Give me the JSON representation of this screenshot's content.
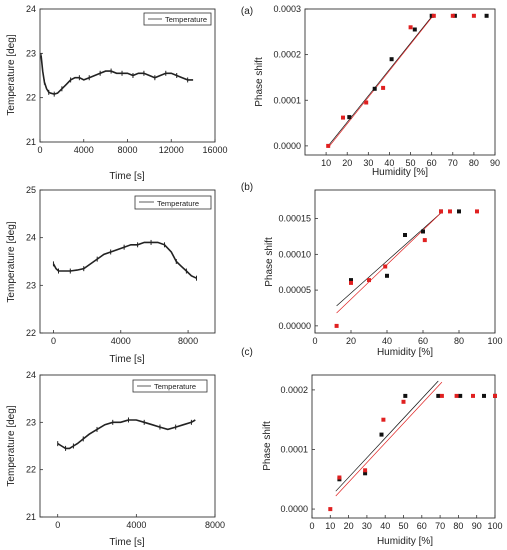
{
  "panel_labels": [
    "(a)",
    "(b)",
    "(c)"
  ],
  "chart_data": [
    {
      "id": "temp-a",
      "type": "line",
      "xlabel": "Time [s]",
      "ylabel": "Temperature [deg]",
      "xlim": [
        0,
        16000
      ],
      "ylim": [
        21,
        24
      ],
      "xticks": [
        0,
        4000,
        8000,
        12000,
        16000
      ],
      "yticks": [
        21,
        22,
        23,
        24
      ],
      "legend": "top-right",
      "series": [
        {
          "name": "Temperature",
          "color": "#222222",
          "x": [
            100,
            250,
            400,
            600,
            800,
            1000,
            1300,
            1600,
            2000,
            2400,
            2800,
            3200,
            3600,
            4000,
            4500,
            5000,
            5500,
            6000,
            6500,
            7000,
            7500,
            8000,
            8500,
            9000,
            9500,
            10000,
            10500,
            11000,
            11500,
            12000,
            12500,
            13000,
            13500,
            14000
          ],
          "y": [
            22.95,
            22.6,
            22.35,
            22.2,
            22.12,
            22.1,
            22.08,
            22.1,
            22.2,
            22.3,
            22.4,
            22.45,
            22.45,
            22.4,
            22.45,
            22.5,
            22.55,
            22.6,
            22.6,
            22.55,
            22.55,
            22.55,
            22.5,
            22.55,
            22.55,
            22.5,
            22.45,
            22.5,
            22.55,
            22.55,
            22.5,
            22.45,
            22.4,
            22.4
          ]
        }
      ]
    },
    {
      "id": "phase-a",
      "type": "scatter",
      "xlabel": "Humidity [%]",
      "ylabel": "Phase shift",
      "xlim": [
        0,
        90
      ],
      "ylim": [
        -2e-05,
        0.0003
      ],
      "xticks": [
        10,
        20,
        30,
        40,
        50,
        60,
        70,
        80,
        90
      ],
      "yticks": [
        0.0,
        0.0001,
        0.0002,
        0.0003
      ],
      "ytick_labels": [
        "0.0000",
        "0.0001",
        "0.0002",
        "0.0003"
      ],
      "series": [
        {
          "color": "#111111",
          "x": [
            21,
            33,
            41,
            52,
            60,
            71,
            86
          ],
          "y": [
            6.3e-05,
            0.000125,
            0.00019,
            0.000255,
            0.000285,
            0.000285,
            0.000285
          ]
        },
        {
          "color": "#e02020",
          "x": [
            11,
            18,
            29,
            37,
            50,
            61,
            70,
            80
          ],
          "y": [
            0.0,
            6.2e-05,
            9.5e-05,
            0.000127,
            0.00026,
            0.000285,
            0.000285,
            0.000285
          ]
        }
      ],
      "fit_lines": [
        {
          "color": "#111111",
          "x": [
            11,
            60
          ],
          "y": [
            0.0,
            0.000283
          ]
        },
        {
          "color": "#e02020",
          "x": [
            11,
            61
          ],
          "y": [
            -4e-06,
            0.000287
          ]
        }
      ]
    },
    {
      "id": "temp-b",
      "type": "line",
      "xlabel": "Time [s]",
      "ylabel": "Temperature [deg]",
      "xlim": [
        -800,
        9600
      ],
      "ylim": [
        22,
        25
      ],
      "xticks": [
        0,
        4000,
        8000
      ],
      "yticks": [
        22,
        23,
        24,
        25
      ],
      "legend": "top-right",
      "series": [
        {
          "name": "Temperature",
          "color": "#222222",
          "x": [
            0,
            150,
            300,
            600,
            1000,
            1400,
            1800,
            2200,
            2600,
            3000,
            3400,
            3800,
            4200,
            4600,
            5000,
            5400,
            5800,
            6200,
            6600,
            7000,
            7300,
            7600,
            7900,
            8200,
            8500
          ],
          "y": [
            23.45,
            23.35,
            23.3,
            23.3,
            23.3,
            23.32,
            23.35,
            23.45,
            23.55,
            23.65,
            23.7,
            23.75,
            23.8,
            23.85,
            23.85,
            23.9,
            23.9,
            23.9,
            23.85,
            23.7,
            23.5,
            23.4,
            23.3,
            23.2,
            23.15
          ]
        }
      ]
    },
    {
      "id": "phase-b",
      "type": "scatter",
      "xlabel": "Humidity [%]",
      "ylabel": "Phase shift",
      "xlim": [
        0,
        100
      ],
      "ylim": [
        -1e-05,
        0.00019
      ],
      "xticks": [
        0,
        20,
        40,
        60,
        80,
        100
      ],
      "yticks": [
        0.0,
        5e-05,
        0.0001,
        0.00015
      ],
      "ytick_labels": [
        "0.00000",
        "0.00005",
        "0.00010",
        "0.00015"
      ],
      "series": [
        {
          "color": "#111111",
          "x": [
            20,
            40,
            50,
            60,
            70,
            80
          ],
          "y": [
            6.4e-05,
            7e-05,
            0.000127,
            0.000132,
            0.00016,
            0.00016
          ]
        },
        {
          "color": "#e02020",
          "x": [
            12,
            20,
            30,
            39,
            61,
            70,
            75,
            90
          ],
          "y": [
            0.0,
            6e-05,
            6.4e-05,
            8.3e-05,
            0.00012,
            0.00016,
            0.00016,
            0.00016
          ]
        }
      ],
      "fit_lines": [
        {
          "color": "#111111",
          "x": [
            12,
            70
          ],
          "y": [
            2.8e-05,
            0.000158
          ]
        },
        {
          "color": "#e02020",
          "x": [
            12,
            70
          ],
          "y": [
            1.8e-05,
            0.000158
          ]
        }
      ]
    },
    {
      "id": "temp-c",
      "type": "line",
      "xlabel": "Time [s]",
      "ylabel": "Temperature [deg]",
      "xlim": [
        -900,
        8000
      ],
      "ylim": [
        21,
        24
      ],
      "xticks": [
        0,
        4000,
        8000
      ],
      "yticks": [
        21,
        22,
        23,
        24
      ],
      "legend": "top-right",
      "series": [
        {
          "name": "Temperature",
          "color": "#222222",
          "x": [
            0,
            200,
            400,
            600,
            800,
            1000,
            1300,
            1600,
            2000,
            2400,
            2800,
            3200,
            3600,
            4000,
            4400,
            4800,
            5200,
            5600,
            6000,
            6400,
            6800,
            7000
          ],
          "y": [
            22.55,
            22.5,
            22.45,
            22.45,
            22.5,
            22.55,
            22.65,
            22.75,
            22.85,
            22.95,
            23.0,
            23.0,
            23.05,
            23.05,
            23.0,
            22.95,
            22.9,
            22.85,
            22.9,
            22.95,
            23.0,
            23.05
          ]
        }
      ]
    },
    {
      "id": "phase-c",
      "type": "scatter",
      "xlabel": "Humidity [%]",
      "ylabel": "Phase shift",
      "xlim": [
        0,
        100
      ],
      "ylim": [
        -1.5e-05,
        0.000225
      ],
      "xticks": [
        0,
        10,
        20,
        30,
        40,
        50,
        60,
        70,
        80,
        90,
        100
      ],
      "yticks": [
        0.0,
        0.0001,
        0.0002
      ],
      "ytick_labels": [
        "0.0000",
        "0.0001",
        "0.0002"
      ],
      "series": [
        {
          "color": "#111111",
          "x": [
            15,
            29,
            38,
            51,
            69,
            81,
            94,
            100
          ],
          "y": [
            5e-05,
            6e-05,
            0.000125,
            0.00019,
            0.00019,
            0.00019,
            0.00019,
            0.00019
          ]
        },
        {
          "color": "#e02020",
          "x": [
            10,
            15,
            29,
            39,
            50,
            71,
            79,
            88,
            100
          ],
          "y": [
            0.0,
            5.3e-05,
            6.5e-05,
            0.00015,
            0.00018,
            0.00019,
            0.00019,
            0.00019,
            0.00019
          ]
        }
      ],
      "fit_lines": [
        {
          "color": "#111111",
          "x": [
            13,
            69
          ],
          "y": [
            3e-05,
            0.000215
          ]
        },
        {
          "color": "#e02020",
          "x": [
            13,
            71
          ],
          "y": [
            2.2e-05,
            0.000213
          ]
        }
      ]
    }
  ]
}
